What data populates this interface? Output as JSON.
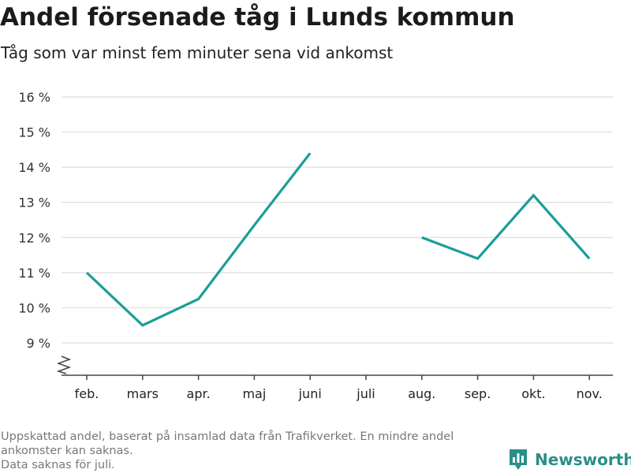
{
  "title": "Andel försenade tåg i Lunds kommun",
  "subtitle": "Tåg som var minst fem minuter sena vid ankomst",
  "footer": {
    "note_line1": "Uppskattad andel, baserat på insamlad data från Trafikverket. En mindre andel ankomster kan saknas.",
    "note_line2": "Data saknas för juli."
  },
  "brand": {
    "name": "Newsworthy",
    "icon": "bar-chart-logo-icon"
  },
  "colors": {
    "line": "#1a9e96",
    "grid": "#dddddd",
    "axis": "#444444",
    "brand": "#2a8f86"
  },
  "chart_data": {
    "type": "line",
    "categories": [
      "feb.",
      "mars",
      "apr.",
      "maj",
      "juni",
      "juli",
      "aug.",
      "sep.",
      "okt.",
      "nov."
    ],
    "series": [
      {
        "values": [
          11.0,
          9.5,
          10.25,
          12.35,
          14.4,
          null,
          12.0,
          11.4,
          13.2,
          11.4
        ]
      }
    ],
    "ylim": [
      9,
      16
    ],
    "yticks": [
      9,
      10,
      11,
      12,
      13,
      14,
      15,
      16
    ],
    "ytick_labels": [
      "9 %",
      "10 %",
      "11 %",
      "12 %",
      "13 %",
      "14 %",
      "15 %",
      "16 %"
    ],
    "y_axis_break": true,
    "grid": true,
    "xlabel": "",
    "ylabel": ""
  }
}
